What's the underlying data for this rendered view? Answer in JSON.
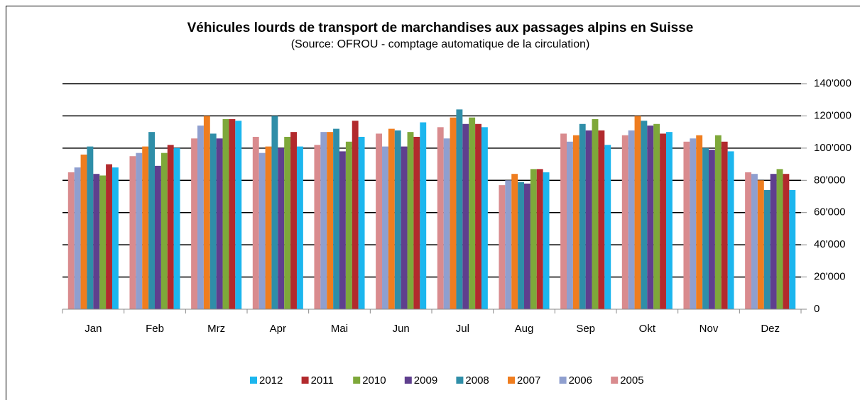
{
  "chart_data": {
    "type": "bar",
    "title": "Véhicules lourds de transport de marchandises aux passages alpins en Suisse",
    "subtitle": "(Source: OFROU - comptage automatique de la circulation)",
    "categories": [
      "Jan",
      "Feb",
      "Mrz",
      "Apr",
      "Mai",
      "Jun",
      "Jul",
      "Aug",
      "Sep",
      "Okt",
      "Nov",
      "Dez"
    ],
    "series": [
      {
        "name": "2005",
        "color": "#d98b8e",
        "values": [
          85000,
          95000,
          106000,
          107000,
          102000,
          109000,
          113000,
          77000,
          109000,
          108000,
          104000,
          85000
        ]
      },
      {
        "name": "2006",
        "color": "#8f9fcf",
        "values": [
          88000,
          97000,
          114000,
          97000,
          110000,
          101000,
          106000,
          80000,
          104000,
          111000,
          106000,
          84000
        ]
      },
      {
        "name": "2007",
        "color": "#ef7d1f",
        "values": [
          96000,
          101000,
          120000,
          101000,
          110000,
          112000,
          119000,
          84000,
          108000,
          120000,
          108000,
          80000
        ]
      },
      {
        "name": "2008",
        "color": "#2f8ea8",
        "values": [
          101000,
          110000,
          109000,
          120000,
          112000,
          111000,
          124000,
          79000,
          115000,
          117000,
          100000,
          74000
        ]
      },
      {
        "name": "2009",
        "color": "#5f3f8e",
        "values": [
          84000,
          89000,
          106000,
          100000,
          98000,
          101000,
          115000,
          78000,
          111000,
          114000,
          99000,
          84000
        ]
      },
      {
        "name": "2010",
        "color": "#7ea83a",
        "values": [
          83000,
          97000,
          118000,
          107000,
          104000,
          110000,
          119000,
          87000,
          118000,
          115000,
          108000,
          87000
        ]
      },
      {
        "name": "2011",
        "color": "#b22a2d",
        "values": [
          90000,
          102000,
          118000,
          110000,
          117000,
          107000,
          115000,
          87000,
          111000,
          109000,
          104000,
          84000
        ]
      },
      {
        "name": "2012",
        "color": "#1cb6ee",
        "values": [
          88000,
          100000,
          117000,
          101000,
          107000,
          116000,
          113000,
          85000,
          102000,
          110000,
          98000,
          74000
        ]
      }
    ],
    "ylim": [
      0,
      140000
    ],
    "yticks": [
      0,
      {
        "value": 20000,
        "label": "20'000"
      },
      {
        "value": 40000,
        "label": "40'000"
      },
      {
        "value": 60000,
        "label": "60'000"
      },
      {
        "value": 80000,
        "label": "80'000"
      },
      {
        "value": 100000,
        "label": "100'000"
      },
      {
        "value": 120000,
        "label": "120'000"
      },
      {
        "value": 140000,
        "label": "140'000"
      }
    ],
    "grid": true
  }
}
